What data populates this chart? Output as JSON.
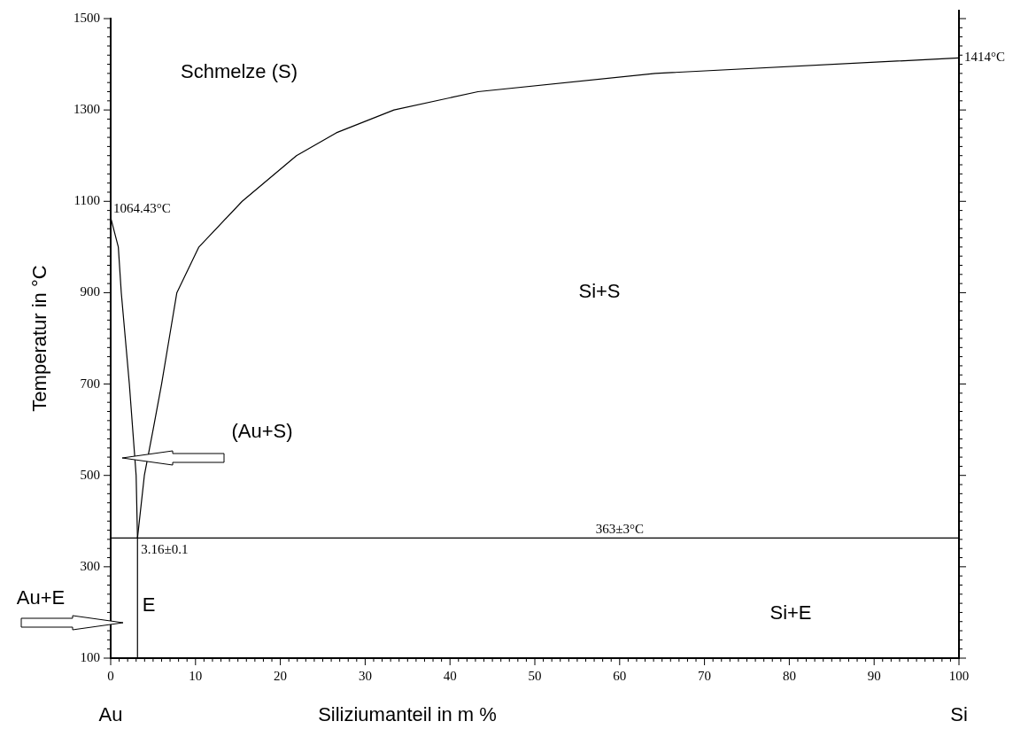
{
  "chart_data": {
    "type": "line",
    "xlabel": "Siliziumanteil in m %",
    "ylabel": "Temperatur in °C",
    "series": [
      {
        "color": "#000000",
        "x": [
          0,
          0.9,
          1.25,
          2.2,
          3.0,
          3.16,
          3.16
        ],
        "values": [
          1064.43,
          1000,
          900,
          700,
          500,
          363,
          100
        ]
      },
      {
        "color": "#000000",
        "x": [
          3.16,
          3.97,
          5.0,
          6.0,
          6.9,
          7.8,
          10.4,
          15.5,
          21.9,
          26.6,
          33.4,
          43.3,
          64.2,
          100
        ],
        "values": [
          363,
          500,
          600,
          700,
          800,
          900,
          1000,
          1100,
          1200,
          1250,
          1300,
          1340,
          1380,
          1414
        ]
      },
      {
        "color": "#000000",
        "x": [
          0,
          100
        ],
        "values": [
          363,
          363
        ]
      }
    ],
    "xlim": [
      0,
      100
    ],
    "ylim": [
      100,
      1500
    ],
    "xticks": [
      0,
      {
        "value": 1,
        "label": null
      },
      {
        "value": 2,
        "label": null
      },
      {
        "value": 3,
        "label": null
      },
      {
        "value": 4,
        "label": null
      },
      {
        "value": 5,
        "label": null
      },
      {
        "value": 6,
        "label": null
      },
      {
        "value": 7,
        "label": null
      },
      {
        "value": 8,
        "label": null
      },
      {
        "value": 9,
        "label": null
      },
      10,
      {
        "value": 11,
        "label": null
      },
      {
        "value": 12,
        "label": null
      },
      {
        "value": 13,
        "label": null
      },
      {
        "value": 14,
        "label": null
      },
      {
        "value": 15,
        "label": null
      },
      {
        "value": 16,
        "label": null
      },
      {
        "value": 17,
        "label": null
      },
      {
        "value": 18,
        "label": null
      },
      {
        "value": 19,
        "label": null
      },
      20,
      {
        "value": 21,
        "label": null
      },
      {
        "value": 22,
        "label": null
      },
      {
        "value": 23,
        "label": null
      },
      {
        "value": 24,
        "label": null
      },
      {
        "value": 25,
        "label": null
      },
      {
        "value": 26,
        "label": null
      },
      {
        "value": 27,
        "label": null
      },
      {
        "value": 28,
        "label": null
      },
      {
        "value": 29,
        "label": null
      },
      30,
      {
        "value": 31,
        "label": null
      },
      {
        "value": 32,
        "label": null
      },
      {
        "value": 33,
        "label": null
      },
      {
        "value": 34,
        "label": null
      },
      {
        "value": 35,
        "label": null
      },
      {
        "value": 36,
        "label": null
      },
      {
        "value": 37,
        "label": null
      },
      {
        "value": 38,
        "label": null
      },
      {
        "value": 39,
        "label": null
      },
      40,
      {
        "value": 41,
        "label": null
      },
      {
        "value": 42,
        "label": null
      },
      {
        "value": 43,
        "label": null
      },
      {
        "value": 44,
        "label": null
      },
      {
        "value": 45,
        "label": null
      },
      {
        "value": 46,
        "label": null
      },
      {
        "value": 47,
        "label": null
      },
      {
        "value": 48,
        "label": null
      },
      {
        "value": 49,
        "label": null
      },
      50,
      {
        "value": 51,
        "label": null
      },
      {
        "value": 52,
        "label": null
      },
      {
        "value": 53,
        "label": null
      },
      {
        "value": 54,
        "label": null
      },
      {
        "value": 55,
        "label": null
      },
      {
        "value": 56,
        "label": null
      },
      {
        "value": 57,
        "label": null
      },
      {
        "value": 58,
        "label": null
      },
      {
        "value": 59,
        "label": null
      },
      60,
      {
        "value": 61,
        "label": null
      },
      {
        "value": 62,
        "label": null
      },
      {
        "value": 63,
        "label": null
      },
      {
        "value": 64,
        "label": null
      },
      {
        "value": 65,
        "label": null
      },
      {
        "value": 66,
        "label": null
      },
      {
        "value": 67,
        "label": null
      },
      {
        "value": 68,
        "label": null
      },
      {
        "value": 69,
        "label": null
      },
      70,
      {
        "value": 71,
        "label": null
      },
      {
        "value": 72,
        "label": null
      },
      {
        "value": 73,
        "label": null
      },
      {
        "value": 74,
        "label": null
      },
      {
        "value": 75,
        "label": null
      },
      {
        "value": 76,
        "label": null
      },
      {
        "value": 77,
        "label": null
      },
      {
        "value": 78,
        "label": null
      },
      {
        "value": 79,
        "label": null
      },
      80,
      {
        "value": 81,
        "label": null
      },
      {
        "value": 82,
        "label": null
      },
      {
        "value": 83,
        "label": null
      },
      {
        "value": 84,
        "label": null
      },
      {
        "value": 85,
        "label": null
      },
      {
        "value": 86,
        "label": null
      },
      {
        "value": 87,
        "label": null
      },
      {
        "value": 88,
        "label": null
      },
      {
        "value": 89,
        "label": null
      },
      90,
      {
        "value": 91,
        "label": null
      },
      {
        "value": 92,
        "label": null
      },
      {
        "value": 93,
        "label": null
      },
      {
        "value": 94,
        "label": null
      },
      {
        "value": 95,
        "label": null
      },
      {
        "value": 96,
        "label": null
      },
      {
        "value": 97,
        "label": null
      },
      {
        "value": 98,
        "label": null
      },
      {
        "value": 99,
        "label": null
      },
      100
    ],
    "yticks": [
      100,
      {
        "value": 120,
        "label": null
      },
      {
        "value": 140,
        "label": null
      },
      {
        "value": 160,
        "label": null
      },
      {
        "value": 180,
        "label": null
      },
      {
        "value": 200,
        "label": null
      },
      {
        "value": 220,
        "label": null
      },
      {
        "value": 240,
        "label": null
      },
      {
        "value": 260,
        "label": null
      },
      {
        "value": 280,
        "label": null
      },
      300,
      {
        "value": 320,
        "label": null
      },
      {
        "value": 340,
        "label": null
      },
      {
        "value": 360,
        "label": null
      },
      {
        "value": 380,
        "label": null
      },
      {
        "value": 400,
        "label": null
      },
      {
        "value": 420,
        "label": null
      },
      {
        "value": 440,
        "label": null
      },
      {
        "value": 460,
        "label": null
      },
      {
        "value": 480,
        "label": null
      },
      500,
      {
        "value": 520,
        "label": null
      },
      {
        "value": 540,
        "label": null
      },
      {
        "value": 560,
        "label": null
      },
      {
        "value": 580,
        "label": null
      },
      {
        "value": 600,
        "label": null
      },
      {
        "value": 620,
        "label": null
      },
      {
        "value": 640,
        "label": null
      },
      {
        "value": 660,
        "label": null
      },
      {
        "value": 680,
        "label": null
      },
      700,
      {
        "value": 720,
        "label": null
      },
      {
        "value": 740,
        "label": null
      },
      {
        "value": 760,
        "label": null
      },
      {
        "value": 780,
        "label": null
      },
      {
        "value": 800,
        "label": null
      },
      {
        "value": 820,
        "label": null
      },
      {
        "value": 840,
        "label": null
      },
      {
        "value": 860,
        "label": null
      },
      {
        "value": 880,
        "label": null
      },
      900,
      {
        "value": 920,
        "label": null
      },
      {
        "value": 940,
        "label": null
      },
      {
        "value": 960,
        "label": null
      },
      {
        "value": 980,
        "label": null
      },
      {
        "value": 1000,
        "label": null
      },
      {
        "value": 1020,
        "label": null
      },
      {
        "value": 1040,
        "label": null
      },
      {
        "value": 1060,
        "label": null
      },
      {
        "value": 1080,
        "label": null
      },
      1100,
      {
        "value": 1120,
        "label": null
      },
      {
        "value": 1140,
        "label": null
      },
      {
        "value": 1160,
        "label": null
      },
      {
        "value": 1180,
        "label": null
      },
      {
        "value": 1200,
        "label": null
      },
      {
        "value": 1220,
        "label": null
      },
      {
        "value": 1240,
        "label": null
      },
      {
        "value": 1260,
        "label": null
      },
      {
        "value": 1280,
        "label": null
      },
      1300,
      {
        "value": 1320,
        "label": null
      },
      {
        "value": 1340,
        "label": null
      },
      {
        "value": 1360,
        "label": null
      },
      {
        "value": 1380,
        "label": null
      },
      {
        "value": 1400,
        "label": null
      },
      {
        "value": 1420,
        "label": null
      },
      {
        "value": 1440,
        "label": null
      },
      {
        "value": 1460,
        "label": null
      },
      {
        "value": 1480,
        "label": null
      },
      1500
    ],
    "annotations": [
      {
        "text": "1064.43°C",
        "x": 0,
        "y": 1064.43
      },
      {
        "text": "1414°C",
        "x": 100,
        "y": 1414
      },
      {
        "text": "363±3°C",
        "x": 60,
        "y": 363
      },
      {
        "text": "3.16±0.1",
        "x": 3.16,
        "y": 363
      },
      "Schmelze (S)",
      "Si+S",
      "Si+E",
      "E",
      "(Au+S)",
      "Au+E",
      "Au",
      "Si"
    ],
    "marker": "none",
    "line_style": "solid",
    "grid": false
  }
}
